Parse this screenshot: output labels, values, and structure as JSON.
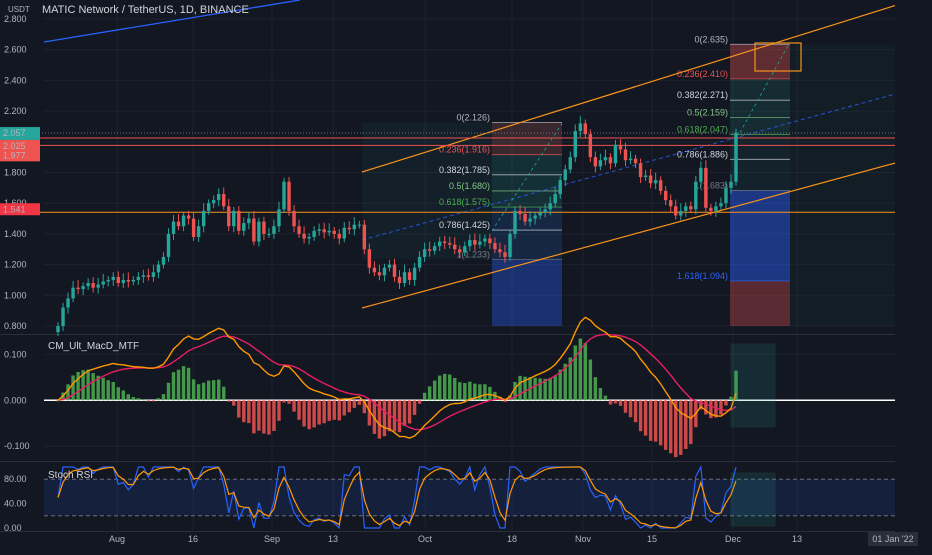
{
  "header": {
    "currency": "USDT",
    "symbol_title": "MATIC Network / TetherUS, 1D, BINANCE"
  },
  "colors": {
    "bg": "#131722",
    "up": "#26a69a",
    "up_bright": "#4caf50",
    "down": "#ef5350",
    "channel": "#f7931a",
    "macd_line": "#e91e63",
    "signal_line": "#ff9800",
    "stoch_k": "#2962ff",
    "stoch_d": "#ff9800",
    "blue_line": "#2962ff"
  },
  "price_axis": {
    "ticks": [
      "2.800",
      "2.600",
      "2.400",
      "2.200",
      "2.057",
      "2.000",
      "1.800",
      "1.600",
      "1.400",
      "1.200",
      "1.000",
      "0.800"
    ],
    "current_price": "2.057",
    "countdown": "06:52:06",
    "red_tag_1": "2.025",
    "red_tag_2": "1.977",
    "orange_tag": "1.541"
  },
  "time_axis": {
    "ticks": [
      "Aug",
      "16",
      "Sep",
      "13",
      "Oct",
      "18",
      "Nov",
      "15",
      "Dec",
      "13"
    ],
    "cursor_tag": "01 Jan '22"
  },
  "fib_left": {
    "levels": [
      {
        "label": "0(2.126)",
        "value": 2.126,
        "color": "#b2b5be"
      },
      {
        "label": "0.236(1.916)",
        "value": 1.916,
        "color": "#ef5350"
      },
      {
        "label": "0.382(1.785)",
        "value": 1.785,
        "color": "#d1d4dc"
      },
      {
        "label": "0.5(1.680)",
        "value": 1.68,
        "color": "#81c784"
      },
      {
        "label": "0.618(1.575)",
        "value": 1.575,
        "color": "#4caf50"
      },
      {
        "label": "0.786(1.425)",
        "value": 1.425,
        "color": "#d1d4dc"
      },
      {
        "label": "1(1.233)",
        "value": 1.233,
        "color": "#787b86"
      }
    ]
  },
  "fib_right": {
    "levels": [
      {
        "label": "0(2.635)",
        "value": 2.635,
        "color": "#b2b5be"
      },
      {
        "label": "0.236(2.410)",
        "value": 2.41,
        "color": "#ef5350"
      },
      {
        "label": "0.382(2.271)",
        "value": 2.271,
        "color": "#d1d4dc"
      },
      {
        "label": "0.5(2.159)",
        "value": 2.159,
        "color": "#81c784"
      },
      {
        "label": "0.618(2.047)",
        "value": 2.047,
        "color": "#4caf50"
      },
      {
        "label": "0.786(1.886)",
        "value": 1.886,
        "color": "#d1d4dc"
      },
      {
        "label": "1(1.683)",
        "value": 1.683,
        "color": "#787b86"
      },
      {
        "label": "1.618(1.094)",
        "value": 1.094,
        "color": "#2962ff"
      }
    ]
  },
  "panes": {
    "macd": {
      "title": "CM_Ult_MacD_MTF",
      "ticks": [
        "0.100",
        "0.000",
        "-0.100"
      ]
    },
    "stoch": {
      "title": "Stoch RSI",
      "ticks": [
        "80.00",
        "40.00",
        "0.00"
      ]
    }
  },
  "chart_data": {
    "type": "candlestick",
    "title": "MATIC Network / TetherUS, 1D, BINANCE",
    "ylim": [
      0.78,
      2.84
    ],
    "closes": [
      0.8,
      0.92,
      0.98,
      1.05,
      1.04,
      1.06,
      1.08,
      1.05,
      1.07,
      1.09,
      1.1,
      1.12,
      1.08,
      1.1,
      1.09,
      1.1,
      1.12,
      1.13,
      1.12,
      1.15,
      1.2,
      1.25,
      1.4,
      1.48,
      1.45,
      1.52,
      1.5,
      1.38,
      1.45,
      1.55,
      1.6,
      1.62,
      1.66,
      1.58,
      1.45,
      1.55,
      1.42,
      1.47,
      1.5,
      1.35,
      1.48,
      1.4,
      1.4,
      1.45,
      1.56,
      1.74,
      1.55,
      1.45,
      1.4,
      1.37,
      1.38,
      1.42,
      1.43,
      1.41,
      1.42,
      1.4,
      1.37,
      1.44,
      1.43,
      1.46,
      1.46,
      1.3,
      1.18,
      1.15,
      1.13,
      1.18,
      1.2,
      1.12,
      1.08,
      1.15,
      1.1,
      1.18,
      1.25,
      1.3,
      1.29,
      1.32,
      1.35,
      1.34,
      1.33,
      1.3,
      1.28,
      1.32,
      1.36,
      1.33,
      1.35,
      1.37,
      1.34,
      1.3,
      1.28,
      1.25,
      1.4,
      1.55,
      1.53,
      1.48,
      1.5,
      1.52,
      1.54,
      1.56,
      1.6,
      1.66,
      1.75,
      1.82,
      1.9,
      2.07,
      2.12,
      2.05,
      1.9,
      1.84,
      1.88,
      1.9,
      1.86,
      1.98,
      1.95,
      1.88,
      1.89,
      1.86,
      1.77,
      1.78,
      1.73,
      1.75,
      1.68,
      1.62,
      1.58,
      1.52,
      1.55,
      1.58,
      1.56,
      1.74,
      1.83,
      1.57,
      1.55,
      1.58,
      1.6,
      1.7,
      1.74,
      2.06
    ],
    "macd_range": [
      -0.13,
      0.14
    ],
    "stoch_range": [
      0,
      100
    ],
    "stoch_bands": [
      80,
      20
    ]
  }
}
